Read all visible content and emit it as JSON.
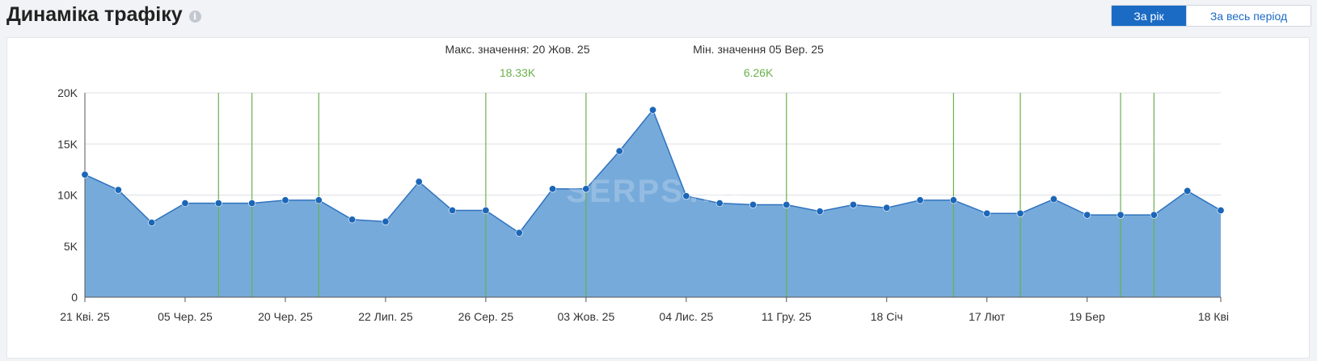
{
  "header": {
    "title": "Динаміка трафіку",
    "info_icon": "info-icon",
    "period_toggle": {
      "year_label": "За рік",
      "all_label": "За весь період",
      "selected": "year"
    }
  },
  "watermark": "SERPSTAT",
  "colors": {
    "area_fill": "#6fa5d8",
    "line": "#2f73bf",
    "point": "#1b66b8",
    "marker_line": "#6ab04c",
    "summary_value": "#6ab04c",
    "accent": "#1b6bc4"
  },
  "summary": {
    "max_label": "Макс. значення: 20 Жов. 25",
    "max_value": "18.33K",
    "min_label": "Мін. значення 05 Вер. 25",
    "min_value": "6.26K"
  },
  "chart_data": {
    "type": "area",
    "title": "",
    "xlabel": "",
    "ylabel": "",
    "ylim": [
      0,
      20000
    ],
    "y_ticks": [
      0,
      5000,
      10000,
      15000,
      20000
    ],
    "y_tick_labels": [
      "0",
      "5K",
      "10K",
      "15K",
      "20K"
    ],
    "x_tick_labels": [
      "21 Кві. 25",
      "05 Чер. 25",
      "20 Чер. 25",
      "22 Лип. 25",
      "26 Сер. 25",
      "03 Жов. 25",
      "04 Лис. 25",
      "11 Гру. 25",
      "18 Січ",
      "17 Лют",
      "19 Бер",
      "18 Кві"
    ],
    "x_tick_index": [
      0,
      3,
      6,
      9,
      12,
      15,
      18,
      21,
      24,
      27,
      30,
      34
    ],
    "grid": "horizontal",
    "series": [
      {
        "values": [
          12000,
          10500,
          7300,
          9200,
          9200,
          9200,
          9500,
          9500,
          7600,
          7400,
          11300,
          8500,
          8500,
          6300,
          10600,
          10600,
          14300,
          18330,
          9900,
          9200,
          9050,
          9050,
          8400,
          9050,
          8750,
          9500,
          9500,
          8200,
          8200,
          9600,
          8050,
          8050,
          8050,
          10400,
          8500
        ]
      }
    ],
    "marker_index": [
      4,
      5,
      7,
      12,
      15,
      21,
      26,
      28,
      31,
      32
    ]
  }
}
